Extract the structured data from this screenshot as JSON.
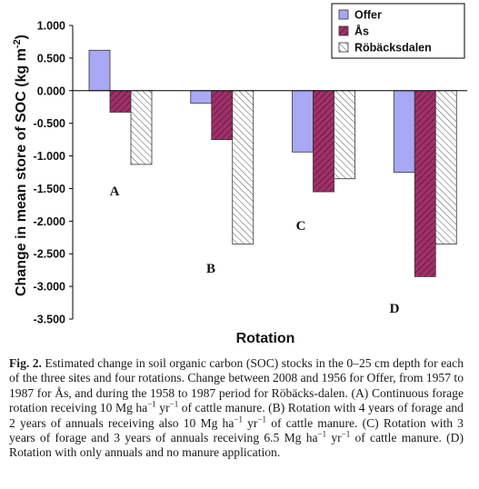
{
  "chart_data": {
    "type": "bar",
    "title": "",
    "xlabel": "Rotation",
    "ylabel": "Change in mean store of SOC (kg m",
    "ylabel_sup": "-2",
    "ylabel_end": ")",
    "ylim": [
      -3.5,
      1.0
    ],
    "yticks": [
      "1.000",
      "0.500",
      "0.000",
      "-0.500",
      "-1.000",
      "-1.500",
      "-2.000",
      "-2.500",
      "-3.000",
      "-3.500"
    ],
    "categories": [
      "A",
      "B",
      "C",
      "D"
    ],
    "series": [
      {
        "name": "Offer",
        "color": "#a8a8f5",
        "values": [
          0.62,
          -0.19,
          -0.94,
          -1.25
        ]
      },
      {
        "name": "Ås",
        "color": "#a0306a",
        "values": [
          -0.33,
          -0.75,
          -1.55,
          -2.85
        ]
      },
      {
        "name": "Röbäcksdalen",
        "color": "#ffffff",
        "values": [
          -1.13,
          -2.35,
          -1.35,
          -2.35
        ]
      }
    ],
    "annotations": [
      "A",
      "B",
      "C",
      "D"
    ],
    "legend_position": "top-right",
    "grid": false
  },
  "caption": {
    "fig_label": "Fig. 2.",
    "p1": " Estimated change in soil organic carbon (SOC) stocks in the 0–25 cm depth for each of the three sites and four rotations. Change between 2008 and 1956 for Offer, from 1957 to 1987 for Ås, and during the 1958 to 1987 period for Röbäcks-dalen. (A) Continuous forage rotation receiving 10 Mg ha",
    "s1": "−1",
    "p2": " yr",
    "s2": "−1",
    "p3": " of cattle manure. (B) Rotation with 4 years of forage and 2 years of annuals receiving also 10 Mg ha",
    "s3": "−1",
    "p4": " yr",
    "s4": "−1",
    "p5": " of cattle manure. (C) Rotation with 3 years of forage and 3 years of annuals receiving 6.5 Mg ha",
    "s5": "−1",
    "p6": " yr",
    "s6": "−1",
    "p7": " of cattle manure. (D) Rotation with only annuals and no manure application."
  }
}
